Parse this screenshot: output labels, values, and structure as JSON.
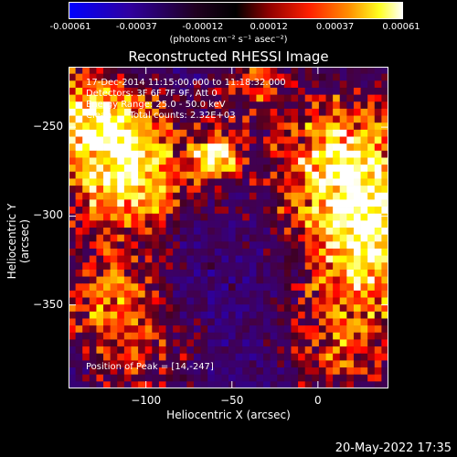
{
  "colorbar": {
    "ticks": [
      "-0.00061",
      "-0.00037",
      "-0.00012",
      "0.00012",
      "0.00037",
      "0.00061"
    ],
    "unit_label": "(photons cm⁻² s⁻¹ asec⁻²)",
    "range": [
      -0.00061,
      0.00061
    ],
    "colors": [
      "#0000ff",
      "#400080",
      "#000000",
      "#800000",
      "#ff0000",
      "#ff8000",
      "#ffff00",
      "#ffffff"
    ]
  },
  "annotation": {
    "line1": "17-Dec-2014 11:15:00.000 to 11:18:32.000",
    "line2": "Detectors: 3F 6F 7F 9F, Att 0",
    "line3": "Energy Range: 25.0 - 50.0 keV",
    "line4": "Clean      Total counts: 2.32E+03",
    "peak": "Position of Peak = [14,-247]"
  },
  "footer": {
    "date": "20-May-2022 17:35"
  },
  "chart_data": {
    "type": "heatmap",
    "title": "Reconstructed RHESSI Image",
    "xlabel": "Heliocentric X (arcsec)",
    "ylabel": "Heliocentric Y (arcsec)",
    "xlim": [
      -145,
      41
    ],
    "ylim": [
      -397,
      -216
    ],
    "xticks": [
      -100,
      -50,
      0
    ],
    "xtick_labels": [
      "−100",
      "−50",
      "0"
    ],
    "yticks": [
      -250,
      -300,
      -350
    ],
    "ytick_labels": [
      "−250",
      "−300",
      "−350"
    ],
    "colorscale": "fire (black-red-orange-yellow-white) with blue-purple negatives",
    "peak_position": [
      14,
      -247
    ],
    "grid_size": [
      46,
      46
    ]
  }
}
